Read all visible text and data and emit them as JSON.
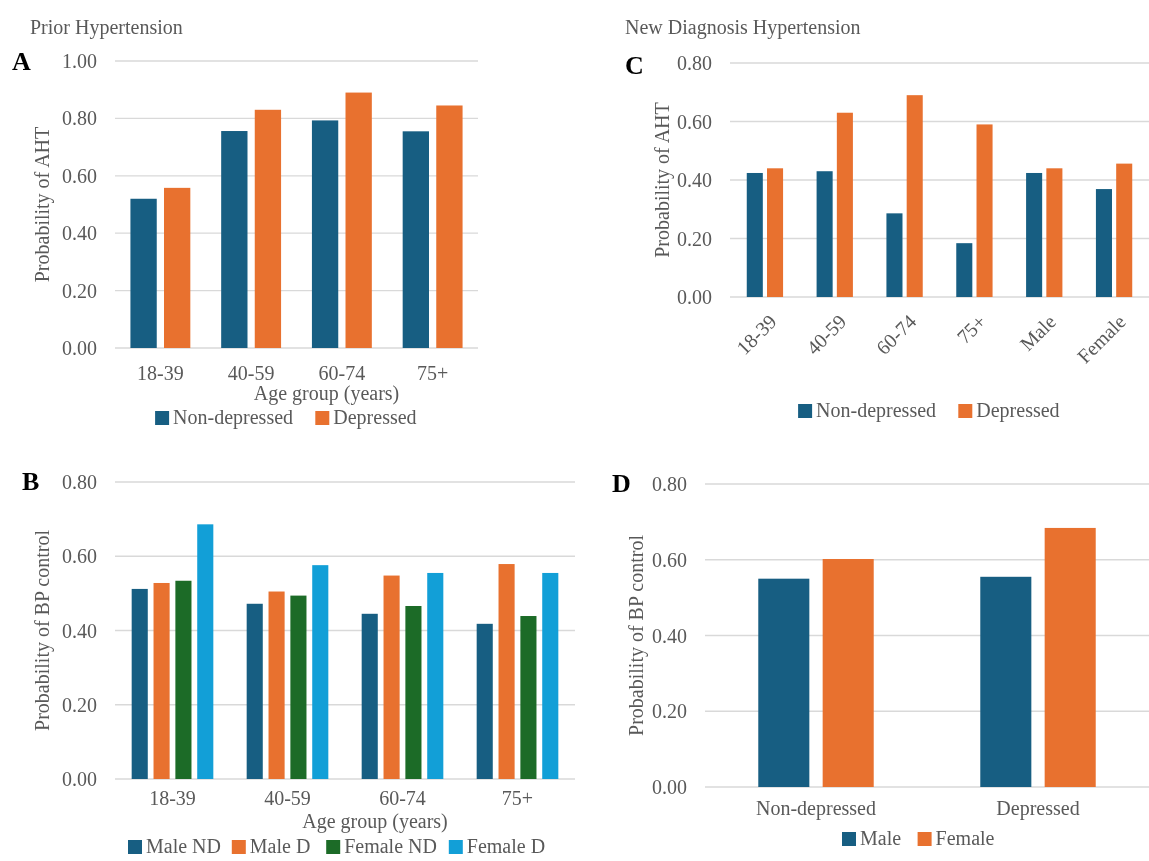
{
  "chart_data": [
    {
      "type": "bar",
      "title": "Prior Hypertension",
      "annotations": [
        "A"
      ],
      "xlabel": "Age group (years)",
      "ylabel": "Probability of AHT",
      "categories": [
        "18-39",
        "40-59",
        "60-74",
        "75+"
      ],
      "series": [
        {
          "name": "Non-depressed",
          "color": "#175e82",
          "values": [
            0.52,
            0.756,
            0.793,
            0.755
          ]
        },
        {
          "name": "Depressed",
          "color": "#e8712f",
          "values": [
            0.558,
            0.83,
            0.89,
            0.845
          ]
        }
      ],
      "ylim": [
        0,
        1
      ],
      "yticks": [
        {
          "value": 0,
          "label": "0.00"
        },
        {
          "value": 0.2,
          "label": "0.20"
        },
        {
          "value": 0.4,
          "label": "0.40"
        },
        {
          "value": 0.6,
          "label": "0.60"
        },
        {
          "value": 0.8,
          "label": "0.80"
        },
        {
          "value": 1,
          "label": "1.00"
        }
      ],
      "grid": "y",
      "legend": "bottom"
    },
    {
      "type": "bar",
      "title": "New Diagnosis Hypertension",
      "annotations": [
        "C"
      ],
      "ylabel": "Probability of AHT",
      "categories": [
        "18-39",
        "40-59",
        "60-74",
        "75+",
        "Male",
        "Female"
      ],
      "series": [
        {
          "name": "Non-depressed",
          "color": "#175e82",
          "values": [
            0.424,
            0.43,
            0.286,
            0.184,
            0.424,
            0.369
          ]
        },
        {
          "name": "Depressed",
          "color": "#e8712f",
          "values": [
            0.44,
            0.63,
            0.69,
            0.59,
            0.44,
            0.456
          ]
        }
      ],
      "ylim": [
        0,
        0.8
      ],
      "yticks": [
        {
          "value": 0,
          "label": "0.00"
        },
        {
          "value": 0.2,
          "label": "0.20"
        },
        {
          "value": 0.4,
          "label": "0.40"
        },
        {
          "value": 0.6,
          "label": "0.60"
        },
        {
          "value": 0.8,
          "label": "0.80"
        }
      ],
      "grid": "y",
      "legend": "bottom"
    },
    {
      "type": "bar",
      "annotations": [
        "B"
      ],
      "xlabel": "Age group (years)",
      "ylabel": "Probability of  BP control",
      "categories": [
        "18-39",
        "40-59",
        "60-74",
        "75+"
      ],
      "series": [
        {
          "name": "Male ND",
          "color": "#175e82",
          "values": [
            0.512,
            0.472,
            0.445,
            0.418
          ]
        },
        {
          "name": "Male D",
          "color": "#e8712f",
          "values": [
            0.528,
            0.505,
            0.548,
            0.579
          ]
        },
        {
          "name": "Female ND",
          "color": "#1c6b27",
          "values": [
            0.534,
            0.494,
            0.466,
            0.439
          ]
        },
        {
          "name": "Female D",
          "color": "#129fd7",
          "values": [
            0.686,
            0.576,
            0.555,
            0.555
          ]
        }
      ],
      "ylim": [
        0,
        0.8
      ],
      "yticks": [
        {
          "value": 0,
          "label": "0.00"
        },
        {
          "value": 0.2,
          "label": "0.20"
        },
        {
          "value": 0.4,
          "label": "0.40"
        },
        {
          "value": 0.6,
          "label": "0.60"
        },
        {
          "value": 0.8,
          "label": "0.80"
        }
      ],
      "grid": "y",
      "legend": "bottom"
    },
    {
      "type": "bar",
      "annotations": [
        "D"
      ],
      "ylabel": "Probability of BP control",
      "categories": [
        "Non-depressed",
        "Depressed"
      ],
      "series": [
        {
          "name": "Male",
          "color": "#175e82",
          "values": [
            0.55,
            0.555
          ]
        },
        {
          "name": "Female",
          "color": "#e8712f",
          "values": [
            0.602,
            0.684
          ]
        }
      ],
      "ylim": [
        0,
        0.8
      ],
      "yticks": [
        {
          "value": 0,
          "label": "0.00"
        },
        {
          "value": 0.2,
          "label": "0.20"
        },
        {
          "value": 0.4,
          "label": "0.40"
        },
        {
          "value": 0.6,
          "label": "0.60"
        },
        {
          "value": 0.8,
          "label": "0.80"
        }
      ],
      "grid": "y",
      "legend": "bottom"
    }
  ]
}
